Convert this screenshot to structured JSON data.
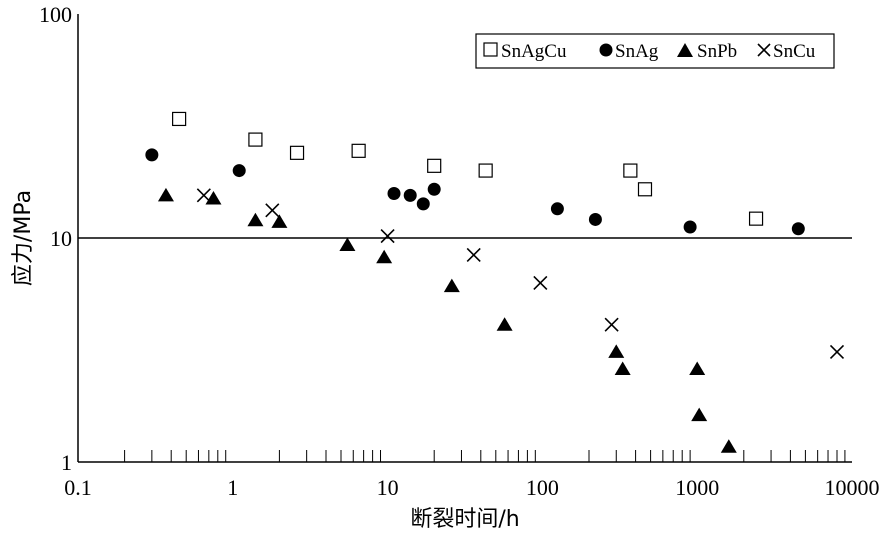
{
  "chart_data": {
    "type": "scatter",
    "title": "",
    "xlabel": "断裂时间/h",
    "ylabel": "应力/MPa",
    "xscale": "log",
    "yscale": "log",
    "xlim": [
      0.1,
      10000
    ],
    "ylim": [
      1,
      100
    ],
    "xticks": [
      0.1,
      1,
      10,
      100,
      1000,
      10000
    ],
    "xtick_labels": [
      "0.1",
      "1",
      "10",
      "100",
      "1000",
      "10000"
    ],
    "yticks": [
      1,
      10,
      100
    ],
    "ytick_labels": [
      "1",
      "10",
      "100"
    ],
    "reference_line": {
      "y": 10
    },
    "legend": {
      "placement": "top-right"
    },
    "series": [
      {
        "name": "SnAgCu",
        "marker": "open-square",
        "points": [
          {
            "x": 0.45,
            "y": 34
          },
          {
            "x": 1.4,
            "y": 27.5
          },
          {
            "x": 2.6,
            "y": 24
          },
          {
            "x": 6.5,
            "y": 24.5
          },
          {
            "x": 20,
            "y": 21
          },
          {
            "x": 43,
            "y": 20
          },
          {
            "x": 370,
            "y": 20
          },
          {
            "x": 460,
            "y": 16.5
          },
          {
            "x": 2400,
            "y": 12.2
          }
        ]
      },
      {
        "name": "SnAg",
        "marker": "filled-circle",
        "points": [
          {
            "x": 0.3,
            "y": 23.5
          },
          {
            "x": 1.1,
            "y": 20
          },
          {
            "x": 11,
            "y": 15.8
          },
          {
            "x": 14,
            "y": 15.5
          },
          {
            "x": 17,
            "y": 14.2
          },
          {
            "x": 20,
            "y": 16.5
          },
          {
            "x": 125,
            "y": 13.5
          },
          {
            "x": 220,
            "y": 12.1
          },
          {
            "x": 900,
            "y": 11.2
          },
          {
            "x": 4500,
            "y": 11
          }
        ]
      },
      {
        "name": "SnPb",
        "marker": "filled-triangle",
        "points": [
          {
            "x": 0.37,
            "y": 15.5
          },
          {
            "x": 0.75,
            "y": 15
          },
          {
            "x": 1.4,
            "y": 12
          },
          {
            "x": 2,
            "y": 11.8
          },
          {
            "x": 5.5,
            "y": 9.3
          },
          {
            "x": 9.5,
            "y": 8.2
          },
          {
            "x": 26,
            "y": 6.1
          },
          {
            "x": 57,
            "y": 4.1
          },
          {
            "x": 300,
            "y": 3.1
          },
          {
            "x": 330,
            "y": 2.6
          },
          {
            "x": 1000,
            "y": 2.6
          },
          {
            "x": 1030,
            "y": 1.62
          },
          {
            "x": 1600,
            "y": 1.17
          }
        ]
      },
      {
        "name": "SnCu",
        "marker": "cross",
        "points": [
          {
            "x": 0.65,
            "y": 15.5
          },
          {
            "x": 1.8,
            "y": 13.3
          },
          {
            "x": 10,
            "y": 10.2
          },
          {
            "x": 36,
            "y": 8.4
          },
          {
            "x": 97,
            "y": 6.3
          },
          {
            "x": 280,
            "y": 4.1
          },
          {
            "x": 8000,
            "y": 3.1
          }
        ]
      }
    ]
  }
}
